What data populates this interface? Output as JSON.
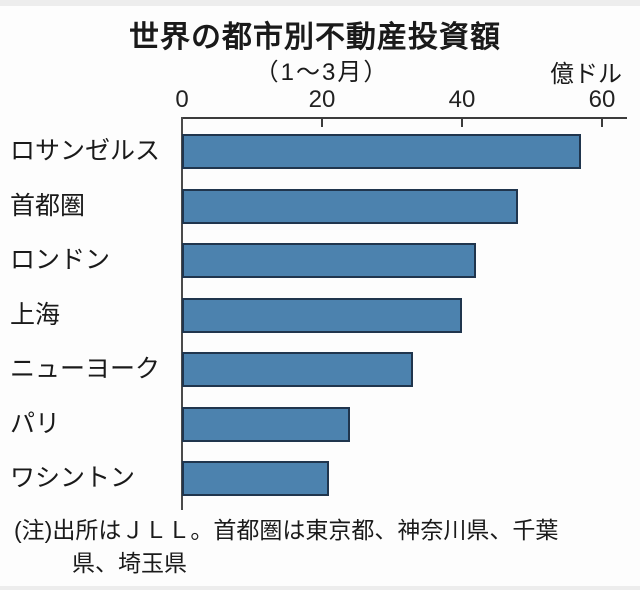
{
  "title": "世界の都市別不動産投資額",
  "subtitle": "（1～3月）",
  "unit_label": "億ドル",
  "note": {
    "line1": "(注)出所はＪＬＬ。首都圏は東京都、神奈川県、千葉",
    "line2": "県、埼玉県"
  },
  "colors": {
    "bar_fill": "#4C82AE",
    "bar_border": "#20354D",
    "axis": "#3C3C3C",
    "text": "#1A1A1A"
  },
  "chart_data": {
    "type": "bar",
    "orientation": "horizontal",
    "title": "世界の都市別不動産投資額",
    "subtitle": "（1～3月）",
    "unit": "億ドル",
    "categories": [
      "ロサンゼルス",
      "首都圏",
      "ロンドン",
      "上海",
      "ニューヨーク",
      "パリ",
      "ワシントン"
    ],
    "values": [
      57,
      48,
      42,
      40,
      33,
      24,
      21
    ],
    "x_ticks": [
      0,
      20,
      40,
      60
    ],
    "xlim": [
      0,
      60
    ],
    "grid": false,
    "legend": false
  }
}
